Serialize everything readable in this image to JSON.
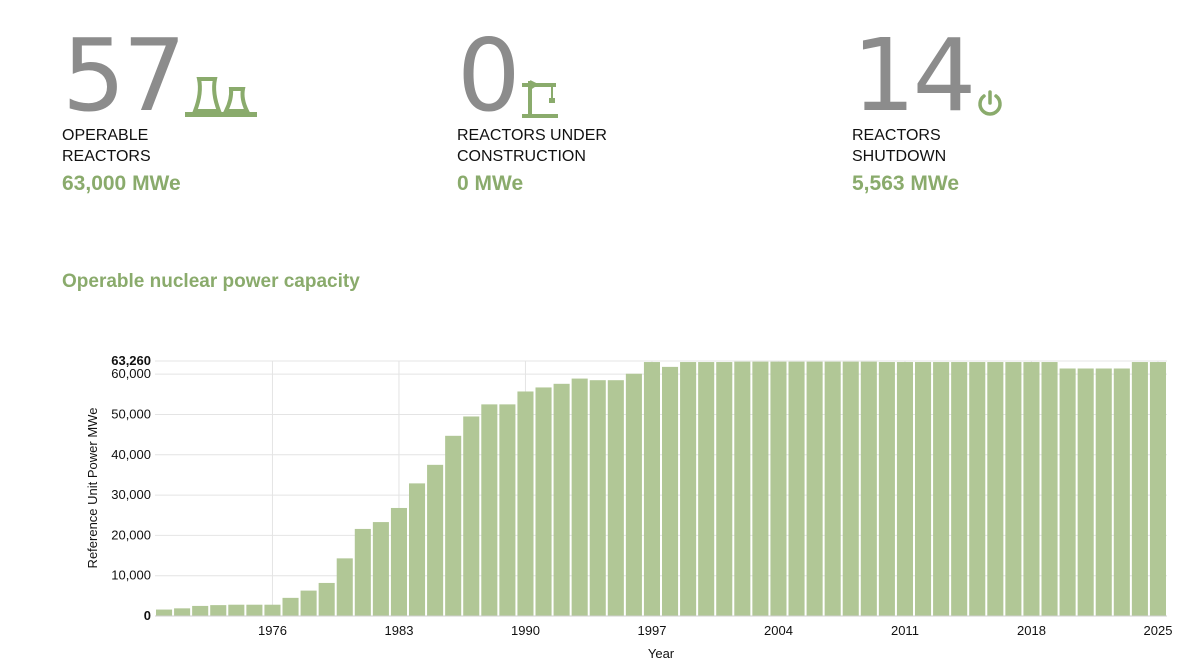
{
  "stats": [
    {
      "number": "57",
      "label_line1": "OPERABLE",
      "label_line2": "REACTORS",
      "mwe": "63,000 MWe",
      "icon": "cooling-tower-icon"
    },
    {
      "number": "0",
      "label_line1": "REACTORS UNDER",
      "label_line2": "CONSTRUCTION",
      "mwe": "0 MWe",
      "icon": "crane-icon"
    },
    {
      "number": "14",
      "label_line1": "REACTORS",
      "label_line2": "SHUTDOWN",
      "mwe": "5,563 MWe",
      "icon": "power-icon"
    }
  ],
  "colors": {
    "accent": "#8aab6c",
    "bar": "#b1c796",
    "number_gray": "#8c8c8c"
  },
  "chart_title": "Operable nuclear power capacity",
  "chart_data": {
    "type": "bar",
    "title": "Operable nuclear power capacity",
    "xlabel": "Year",
    "ylabel": "Reference Unit Power MWe",
    "ylim": [
      0,
      63260
    ],
    "yticks": [
      0,
      10000,
      20000,
      30000,
      40000,
      50000,
      60000,
      63260
    ],
    "ytick_labels": [
      "0",
      "10,000",
      "20,000",
      "30,000",
      "40,000",
      "50,000",
      "60,000",
      "63,260"
    ],
    "xtick_labels": [
      "1976",
      "1983",
      "1990",
      "1997",
      "2004",
      "2011",
      "2018",
      "2025"
    ],
    "grid": true,
    "categories": [
      1970,
      1971,
      1972,
      1973,
      1974,
      1975,
      1976,
      1977,
      1978,
      1979,
      1980,
      1981,
      1982,
      1983,
      1984,
      1985,
      1986,
      1987,
      1988,
      1989,
      1990,
      1991,
      1992,
      1993,
      1994,
      1995,
      1996,
      1997,
      1998,
      1999,
      2000,
      2001,
      2002,
      2003,
      2004,
      2005,
      2006,
      2007,
      2008,
      2009,
      2010,
      2011,
      2012,
      2013,
      2014,
      2015,
      2016,
      2017,
      2018,
      2019,
      2020,
      2021,
      2022,
      2023,
      2024,
      2025
    ],
    "values": [
      1600,
      1900,
      2500,
      2700,
      2800,
      2800,
      2800,
      4500,
      6300,
      8200,
      14300,
      21600,
      23300,
      26800,
      32900,
      37500,
      44700,
      49500,
      52500,
      52500,
      55700,
      56700,
      57600,
      58900,
      58500,
      58500,
      60100,
      63000,
      61800,
      63000,
      63000,
      63000,
      63100,
      63100,
      63100,
      63100,
      63100,
      63100,
      63100,
      63100,
      63000,
      63000,
      63000,
      63000,
      63000,
      63000,
      63000,
      63000,
      63000,
      63000,
      61400,
      61400,
      61400,
      61400,
      63000,
      63000
    ]
  }
}
